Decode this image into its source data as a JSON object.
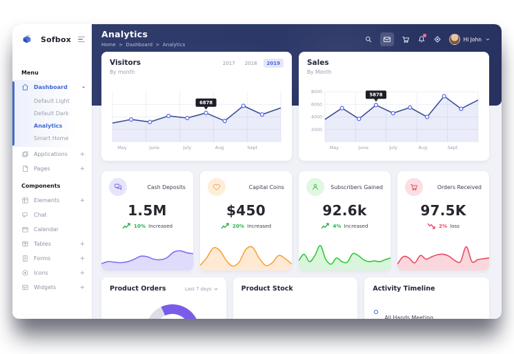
{
  "brand": {
    "name": "Sofbox"
  },
  "sidebar": {
    "sections": [
      {
        "label": "Menu",
        "items": [
          {
            "label": "Dashboard",
            "toggle": "-",
            "active": true,
            "children": [
              {
                "label": "Default Light"
              },
              {
                "label": "Default Dark"
              },
              {
                "label": "Analytics",
                "active": true
              },
              {
                "label": "Smart Home"
              }
            ]
          },
          {
            "label": "Applications",
            "toggle": "+"
          },
          {
            "label": "Pages",
            "toggle": "+"
          }
        ]
      },
      {
        "label": "Components",
        "items": [
          {
            "label": "Elements",
            "toggle": "+"
          },
          {
            "label": "Chat",
            "toggle": ""
          },
          {
            "label": "Calendar",
            "toggle": ""
          },
          {
            "label": "Tables",
            "toggle": "+"
          },
          {
            "label": "Forms",
            "toggle": "+"
          },
          {
            "label": "Icons",
            "toggle": "+"
          },
          {
            "label": "Widgets",
            "toggle": "+"
          }
        ]
      }
    ]
  },
  "header": {
    "title": "Analytics",
    "breadcrumb": {
      "items": [
        "Home",
        "Dashboard",
        "Analytics"
      ],
      "sep": ">"
    },
    "user": "Hi John",
    "icons": [
      "search",
      "mail",
      "cart",
      "bell",
      "compass"
    ]
  },
  "visitors_card": {
    "title": "Visitors",
    "subtitle": "By month",
    "years": [
      "2017",
      "2018",
      "2019"
    ],
    "active_year": "2019"
  },
  "sales_card": {
    "title": "Sales",
    "subtitle": "By Month"
  },
  "chart_data": [
    {
      "type": "area",
      "name": "Visitors by month",
      "x_labels": [
        "May",
        "June",
        "July",
        "Aug",
        "Sept"
      ],
      "values": [
        38,
        45,
        40,
        52,
        48,
        58,
        42,
        72,
        55,
        68
      ],
      "ylim": [
        0,
        100
      ],
      "grid": true,
      "legend": false,
      "tooltip": {
        "index": 5,
        "label": "6878"
      },
      "line_color": "#3b4e8f",
      "fill_color": "rgba(106,119,217,0.14)"
    },
    {
      "type": "area",
      "name": "Sales by month",
      "x_labels": [
        "May",
        "June",
        "July",
        "Aug",
        "Sept"
      ],
      "values": [
        3600,
        5400,
        3700,
        5900,
        4600,
        5500,
        4000,
        7300,
        5300,
        6700
      ],
      "ylim": [
        0,
        8000
      ],
      "yticks": [
        2000,
        4000,
        6000,
        8000
      ],
      "grid": true,
      "legend": false,
      "tooltip": {
        "index": 3,
        "label": "5878"
      },
      "line_color": "#3b4e8f",
      "fill_color": "rgba(106,119,217,0.14)"
    }
  ],
  "stats": [
    {
      "title": "Cash Deposits",
      "value": "1.5M",
      "change_pct": "10%",
      "change_label": "Increased",
      "trend": "up",
      "icon": "chat-bubble-icon",
      "color": "#7c6ff0",
      "spark_fill": "rgba(124,111,240,0.25)",
      "spark": [
        22,
        30,
        28,
        26,
        30,
        40,
        52,
        50,
        40,
        38,
        46,
        68,
        74,
        66,
        62
      ]
    },
    {
      "title": "Capital Coins",
      "value": "$450",
      "change_pct": "20%",
      "change_label": "Increased",
      "trend": "up",
      "icon": "heart-icon",
      "color": "#f9a13d",
      "spark_fill": "rgba(249,161,61,0.22)",
      "spark": [
        15,
        45,
        85,
        75,
        35,
        12,
        30,
        80,
        88,
        45,
        15,
        25,
        55,
        42,
        20
      ]
    },
    {
      "title": "Subscribers Gained",
      "value": "92.6k",
      "change_pct": "4%",
      "change_label": "Increased",
      "trend": "up",
      "icon": "user-icon",
      "color": "#2dc937",
      "spark_fill": "rgba(45,201,55,0.18)",
      "spark": [
        35,
        60,
        30,
        55,
        95,
        40,
        20,
        45,
        30,
        28,
        62,
        55,
        38,
        30,
        33,
        30,
        38,
        45
      ]
    },
    {
      "title": "Orders Received",
      "value": "97.5K",
      "change_pct": "2%",
      "change_label": "loss",
      "trend": "down",
      "icon": "cart-icon",
      "color": "#e8495f",
      "spark_fill": "rgba(232,73,95,0.22)",
      "spark": [
        20,
        50,
        45,
        25,
        55,
        40,
        50,
        58,
        60,
        52,
        35,
        30,
        90,
        30,
        38,
        42,
        45
      ]
    }
  ],
  "bottom": {
    "product_orders": {
      "title": "Product Orders",
      "filter": "Last 7 days",
      "donut": {
        "colors": [
          "#7a5cea",
          "#dcdde6"
        ],
        "values": [
          75,
          25
        ]
      }
    },
    "product_stock": {
      "title": "Product Stock"
    },
    "activity": {
      "title": "Activity Timeline",
      "items": [
        {
          "label": "All Hands Meeting"
        }
      ]
    }
  },
  "colors": {
    "navy": "#2c3868",
    "primary": "#4169d0",
    "badge_bg": "#e4e6fb",
    "green": "#27b345",
    "red": "#e8495f"
  }
}
